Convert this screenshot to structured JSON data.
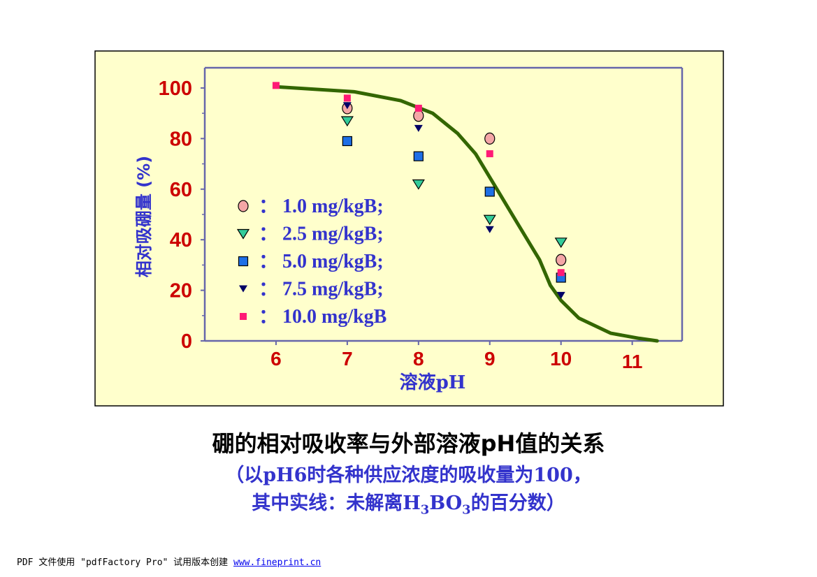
{
  "colors": {
    "panel_bg": "#ffffcc",
    "axis": "#6666aa",
    "tick_label": "#cc0000",
    "axis_title": "#3333cc",
    "curve": "#336600",
    "legend_text": "#3333cc"
  },
  "chart_data": {
    "type": "scatter",
    "title": "",
    "xlabel": "溶液pH",
    "ylabel": "相对吸硼量 (%)",
    "xlim": [
      5,
      11.7
    ],
    "ylim": [
      0,
      108
    ],
    "x_ticks": [
      "6",
      "7",
      "8",
      "9",
      "10",
      "11"
    ],
    "y_ticks": [
      "0",
      "20",
      "40",
      "60",
      "80",
      "100"
    ],
    "grid": false,
    "legend_position": "center-left",
    "series": [
      {
        "name": "1.0 mg/kgB",
        "marker": "circle",
        "color": "#f4a6a6",
        "points": [
          [
            7,
            92
          ],
          [
            8,
            89
          ],
          [
            9,
            80
          ],
          [
            10,
            32
          ]
        ]
      },
      {
        "name": "2.5 mg/kgB",
        "marker": "triangle-down",
        "color": "#33cc99",
        "points": [
          [
            7,
            87
          ],
          [
            8,
            62
          ],
          [
            9,
            48
          ],
          [
            10,
            39
          ]
        ]
      },
      {
        "name": "5.0 mg/kgB",
        "marker": "square",
        "color": "#1e6fe6",
        "points": [
          [
            7,
            79
          ],
          [
            8,
            73
          ],
          [
            9,
            59
          ],
          [
            10,
            25
          ]
        ]
      },
      {
        "name": "7.5 mg/kgB",
        "marker": "triangle-down-small",
        "color": "#000066",
        "points": [
          [
            7,
            93
          ],
          [
            8,
            84
          ],
          [
            9,
            44
          ],
          [
            10,
            18
          ]
        ]
      },
      {
        "name": "10.0 mg/kgB",
        "marker": "small-square",
        "color": "#ff1a75",
        "points": [
          [
            6,
            101
          ],
          [
            7,
            96
          ],
          [
            8,
            92
          ],
          [
            9,
            74
          ],
          [
            10,
            27
          ]
        ]
      }
    ],
    "curve": {
      "points": [
        [
          6,
          100.5
        ],
        [
          7.1,
          98.5
        ],
        [
          7.75,
          95
        ],
        [
          8.2,
          90
        ],
        [
          8.55,
          82
        ],
        [
          8.8,
          74
        ],
        [
          9.1,
          60
        ],
        [
          9.4,
          46
        ],
        [
          9.7,
          32
        ],
        [
          9.85,
          22
        ],
        [
          10,
          16
        ],
        [
          10.25,
          9
        ],
        [
          10.7,
          3
        ],
        [
          11.1,
          1
        ],
        [
          11.35,
          0
        ]
      ]
    },
    "legend": [
      {
        "symbol": "circle",
        "label": "1.0 mg/kgB;"
      },
      {
        "symbol": "triangle-down",
        "label": "2.5 mg/kgB;"
      },
      {
        "symbol": "square",
        "label": "5.0 mg/kgB;"
      },
      {
        "symbol": "triangle-down-small",
        "label": "7.5 mg/kgB;"
      },
      {
        "symbol": "small-square",
        "label": "10.0 mg/kgB"
      }
    ],
    "legend_colon": "："
  },
  "caption": {
    "title": "硼的相对吸收率与外部溶液pH值的关系",
    "note_line1": "（以pH6时各种供应浓度的吸收量为100，",
    "note_line2_pre": "其中实线：未解离H",
    "note_line2_sub1": "3",
    "note_line2_mid": "BO",
    "note_line2_sub2": "3",
    "note_line2_post": "的百分数）"
  },
  "footer": {
    "text": "PDF 文件使用 \"pdfFactory Pro\" 试用版本创建 ",
    "link": "www.fineprint.cn"
  }
}
